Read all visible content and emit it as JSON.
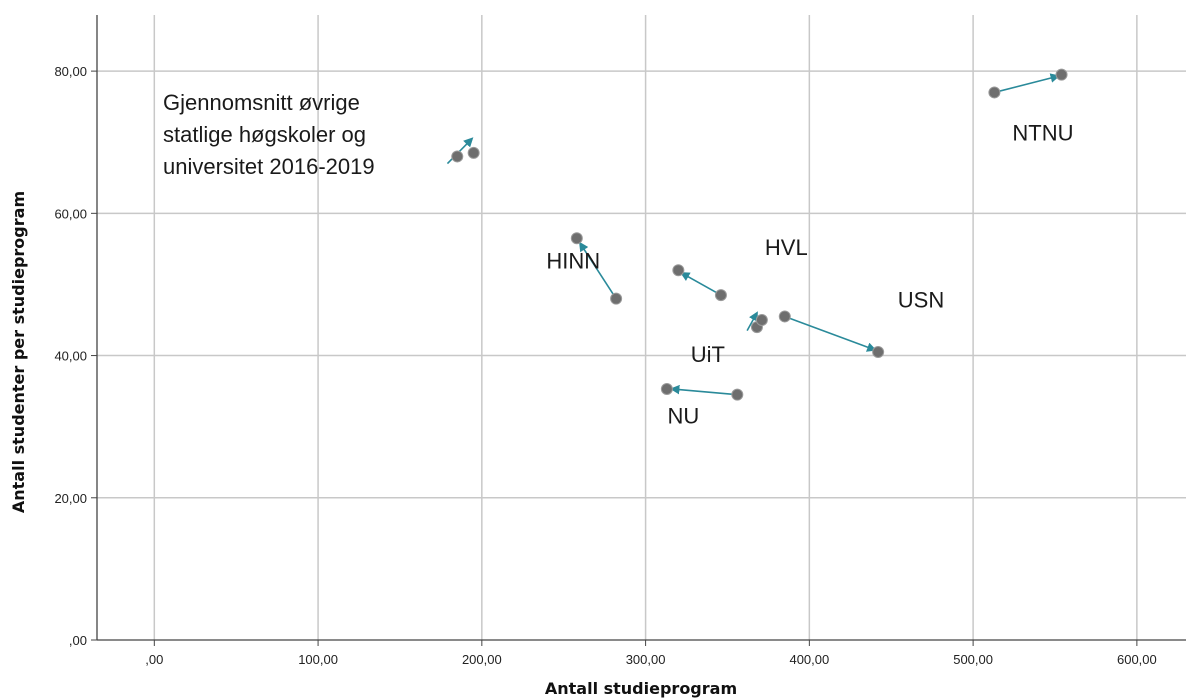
{
  "chart_data": {
    "type": "scatter",
    "xlabel": "Antall studieprogram",
    "ylabel": "Antall studenter per studieprogram",
    "xlim": [
      -35,
      630
    ],
    "ylim": [
      0,
      90
    ],
    "xticks": [
      0,
      100,
      200,
      300,
      400,
      500,
      600
    ],
    "xtick_labels": [
      ",00",
      "100,00",
      "200,00",
      "300,00",
      "400,00",
      "500,00",
      "600,00"
    ],
    "yticks": [
      0,
      20,
      40,
      60,
      80
    ],
    "ytick_labels": [
      ",00",
      "20,00",
      "40,00",
      "60,00",
      "80,00"
    ],
    "grid": true,
    "colors": {
      "point": "#6e6e6e",
      "arrow": "#2a8a9a",
      "grid": "#c8c8c8"
    },
    "groups": [
      {
        "label": "Gjennomsnitt øvrige statlige høgskoler og universitet 2016-2019",
        "points": [
          [
            185,
            68
          ],
          [
            195,
            68.5
          ]
        ],
        "arrow": [
          [
            179,
            67
          ],
          [
            194,
            70.5
          ]
        ]
      },
      {
        "label": "NTNU",
        "points": [
          [
            513,
            77
          ],
          [
            554,
            79.5
          ]
        ],
        "arrow": [
          [
            513,
            77
          ],
          [
            552,
            79.3
          ]
        ]
      },
      {
        "label": "HINN",
        "points": [
          [
            282,
            48
          ],
          [
            258,
            56.5
          ]
        ],
        "arrow": [
          [
            282,
            48
          ],
          [
            260,
            55.8
          ]
        ]
      },
      {
        "label": "HVL",
        "points": [
          [
            346,
            48.5
          ],
          [
            320,
            52
          ]
        ],
        "arrow": [
          [
            346,
            48.5
          ],
          [
            322,
            51.6
          ]
        ]
      },
      {
        "label": "UiT",
        "points": [
          [
            368,
            44
          ],
          [
            371,
            45
          ]
        ],
        "arrow": [
          [
            362,
            43.5
          ],
          [
            368,
            46
          ]
        ]
      },
      {
        "label": "USN",
        "points": [
          [
            385,
            45.5
          ],
          [
            442,
            40.5
          ]
        ],
        "arrow": [
          [
            385,
            45.5
          ],
          [
            440,
            40.8
          ]
        ]
      },
      {
        "label": "NU",
        "points": [
          [
            356,
            34.5
          ],
          [
            313,
            35.3
          ]
        ],
        "arrow": [
          [
            356,
            34.5
          ],
          [
            316,
            35.3
          ]
        ]
      }
    ]
  }
}
